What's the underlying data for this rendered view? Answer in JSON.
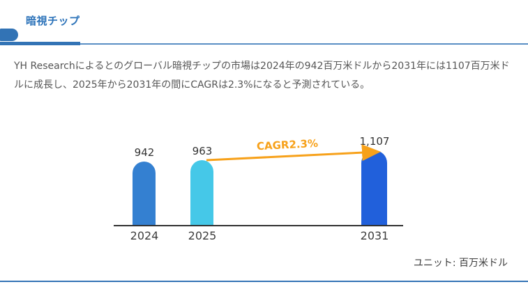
{
  "page": {
    "title": "暗視チップ",
    "description": "YH Researchによるとのグローバル暗視チップの市場は2024年の942百万米ドルから2031年には1107百万米ドルに成長し、2025年から2031年の間にCAGRは2.3%になると予測されている。",
    "accent_color": "#3273b5"
  },
  "chart_data": {
    "type": "bar",
    "title": "",
    "xlabel": "",
    "ylabel": "",
    "categories": [
      "2024",
      "2025",
      "2031"
    ],
    "values": [
      942,
      963,
      1107
    ],
    "value_labels": [
      "942",
      "963",
      "1,107"
    ],
    "bar_colors": [
      "#3480d1",
      "#45c8e8",
      "#2160db"
    ],
    "ylim": [
      0,
      1107
    ],
    "grid": false,
    "legend": false,
    "annotation": "CAGR2.3%",
    "annotation_color": "#f7a11a",
    "unit_label": "ユニット: 百万米ドル",
    "axis_color": "#2f2f2f"
  }
}
